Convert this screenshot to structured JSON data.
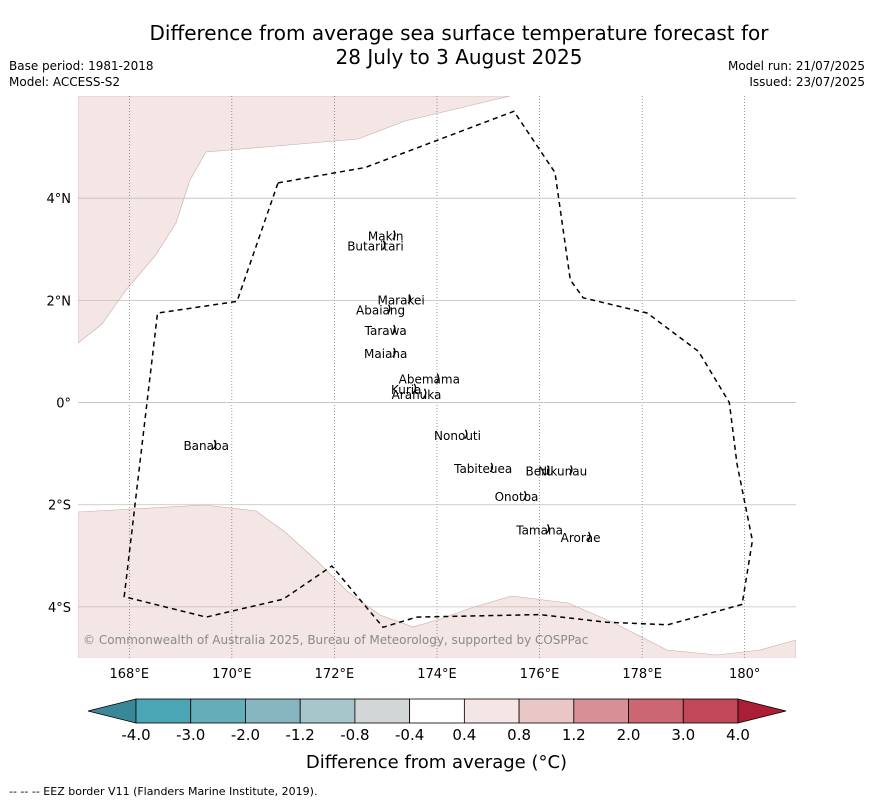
{
  "header": {
    "title_line1": "Difference from average sea surface temperature forecast for",
    "title_line2": "28 July to 3 August 2025",
    "base_period": "Base period: 1981-2018",
    "model": "Model: ACCESS-S2",
    "model_run": "Model run: 21/07/2025",
    "issued": "Issued: 23/07/2025"
  },
  "map": {
    "lon_range": [
      167,
      181
    ],
    "lat_range": [
      -5,
      6
    ],
    "x_ticks": [
      {
        "lon": 168,
        "label": "168°E"
      },
      {
        "lon": 170,
        "label": "170°E"
      },
      {
        "lon": 172,
        "label": "172°E"
      },
      {
        "lon": 174,
        "label": "174°E"
      },
      {
        "lon": 176,
        "label": "176°E"
      },
      {
        "lon": 178,
        "label": "178°E"
      },
      {
        "lon": 180,
        "label": "180°"
      }
    ],
    "y_ticks": [
      {
        "lat": 4,
        "label": "4°N"
      },
      {
        "lat": 2,
        "label": "2°N"
      },
      {
        "lat": 0,
        "label": "0°"
      },
      {
        "lat": -2,
        "label": "2°S"
      },
      {
        "lat": -4,
        "label": "4°S"
      }
    ],
    "islands": [
      {
        "name": "Makin",
        "lon": 173.0,
        "lat": 3.25
      },
      {
        "name": "Butaritari",
        "lon": 172.8,
        "lat": 3.05
      },
      {
        "name": "Marakei",
        "lon": 173.3,
        "lat": 2.0
      },
      {
        "name": "Abaiang",
        "lon": 172.9,
        "lat": 1.8
      },
      {
        "name": "Tarawa",
        "lon": 173.0,
        "lat": 1.4
      },
      {
        "name": "Maiana",
        "lon": 173.0,
        "lat": 0.95
      },
      {
        "name": "Abemama",
        "lon": 173.85,
        "lat": 0.45
      },
      {
        "name": "Kuria",
        "lon": 173.4,
        "lat": 0.25
      },
      {
        "name": "Aranuka",
        "lon": 173.6,
        "lat": 0.15
      },
      {
        "name": "Nonouti",
        "lon": 174.4,
        "lat": -0.65
      },
      {
        "name": "Banaba",
        "lon": 169.5,
        "lat": -0.85
      },
      {
        "name": "Tabiteuea",
        "lon": 174.9,
        "lat": -1.3
      },
      {
        "name": "Beru",
        "lon": 176.0,
        "lat": -1.35
      },
      {
        "name": "Nikunau",
        "lon": 176.45,
        "lat": -1.35
      },
      {
        "name": "Onotoa",
        "lon": 175.55,
        "lat": -1.85
      },
      {
        "name": "Tamana",
        "lon": 176.0,
        "lat": -2.5
      },
      {
        "name": "Arorae",
        "lon": 176.8,
        "lat": -2.65
      }
    ],
    "eez_border": [
      [
        170.9,
        4.3
      ],
      [
        172.6,
        4.6
      ],
      [
        175.5,
        5.7
      ],
      [
        176.3,
        4.5
      ],
      [
        176.6,
        2.4
      ],
      [
        176.85,
        2.05
      ],
      [
        178.1,
        1.75
      ],
      [
        179.1,
        1.0
      ],
      [
        179.7,
        0.0
      ],
      [
        179.85,
        -1.2
      ],
      [
        180.15,
        -2.7
      ],
      [
        179.95,
        -3.95
      ],
      [
        178.5,
        -4.35
      ],
      [
        177.3,
        -4.3
      ],
      [
        176.0,
        -4.15
      ],
      [
        173.6,
        -4.2
      ],
      [
        172.95,
        -4.4
      ],
      [
        171.95,
        -3.2
      ],
      [
        171.0,
        -3.85
      ],
      [
        169.5,
        -4.2
      ],
      [
        167.9,
        -3.8
      ],
      [
        168.55,
        1.75
      ],
      [
        170.1,
        1.98
      ],
      [
        170.9,
        4.3
      ]
    ],
    "colors": {
      "positive_anomaly_fill": "#f4e6e5",
      "positive_anomaly_edge": "#c9a9a8",
      "border": "#000000",
      "gridline": "#c8bcbc"
    },
    "copyright": "© Commonwealth of Australia 2025, Bureau of Meteorology, supported by COSPPac"
  },
  "colorbar": {
    "label": "Difference from average (°C)",
    "tick_labels": [
      "-4.0",
      "-3.0",
      "-2.0",
      "-1.2",
      "-0.8",
      "-0.4",
      "0.4",
      "0.8",
      "1.2",
      "2.0",
      "3.0",
      "4.0"
    ],
    "min_color": "#3a8797",
    "max_color": "#ac1d36",
    "colors": [
      "#4aa5b4",
      "#66adba",
      "#88b6c0",
      "#a7c6ca",
      "#d2d6d6",
      "#ffffff",
      "#f4e6e5",
      "#e9c7c6",
      "#d98f96",
      "#cc6672",
      "#c24757"
    ]
  },
  "footer": {
    "legend_line": "-- -- -- EEZ border V11 (Flanders Marine Institute, 2019)."
  }
}
